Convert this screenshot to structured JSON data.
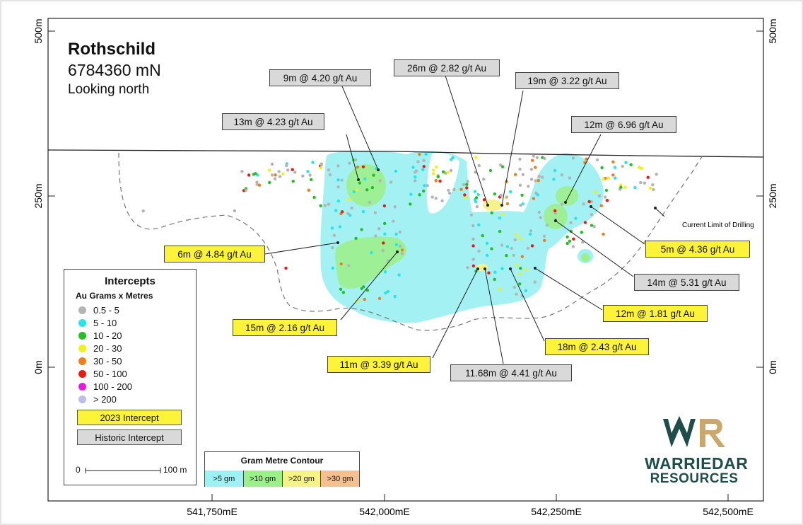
{
  "section": {
    "name": "Rothschild",
    "northing": "6784360 mN",
    "view": "Looking north"
  },
  "axes": {
    "y_left": [
      "500m",
      "250m",
      "0m"
    ],
    "y_right": [
      "500m",
      "250m",
      "0m"
    ],
    "x": [
      "541,750mE",
      "542,000mE",
      "542,250mE",
      "542,500mE"
    ]
  },
  "drilling_limit_label": "Current Limit of Drilling",
  "legend": {
    "title": "Intercepts",
    "subtitle": "Au Grams x Metres",
    "items": [
      {
        "label": "0.5 - 5",
        "color": "#b4b4b4"
      },
      {
        "label": "5 - 10",
        "color": "#22e6ee"
      },
      {
        "label": "10 - 20",
        "color": "#22c022"
      },
      {
        "label": "20 - 30",
        "color": "#f2f20a"
      },
      {
        "label": "30 - 50",
        "color": "#ee7e16"
      },
      {
        "label": "50 - 100",
        "color": "#ee1a12"
      },
      {
        "label": "100 - 200",
        "color": "#e81ae0"
      },
      {
        "label": "> 200",
        "color": "#bcbcef"
      }
    ],
    "new_intercept": "2023 Intercept",
    "historic_intercept": "Historic Intercept",
    "scale_start": "0",
    "scale_end": "100 m"
  },
  "contour_legend": {
    "title": "Gram Metre Contour",
    "cells": [
      {
        "label": ">5 gm",
        "color": "#9ff0f2"
      },
      {
        "label": ">10 gm",
        "color": "#9cf08c"
      },
      {
        "label": ">20 gm",
        "color": "#f6f28a"
      },
      {
        "label": ">30 gm",
        "color": "#f5c090"
      }
    ]
  },
  "callouts": {
    "c9m": "9m @ 4.20 g/t Au",
    "c26m": "26m @ 2.82 g/t Au",
    "c19m": "19m @ 3.22 g/t Au",
    "c13m": "13m @ 4.23 g/t Au",
    "c12a": "12m @ 6.96 g/t Au",
    "c6m": "6m @ 4.84 g/t Au",
    "c5m": "5m @ 4.36 g/t Au",
    "c14m": "14m @ 5.31 g/t Au",
    "c12b": "12m @ 1.81 g/t Au",
    "c15m": "15m @ 2.16 g/t Au",
    "c18m": "18m @ 2.43 g/t Au",
    "c11m": "11m @ 3.39 g/t Au",
    "c1168": "11.68m @ 4.41 g/t Au"
  },
  "logo": {
    "line1": "WARRIEDAR",
    "line2": "RESOURCES",
    "mark_left": "#1f4d4a",
    "mark_right": "#c9a86a"
  }
}
